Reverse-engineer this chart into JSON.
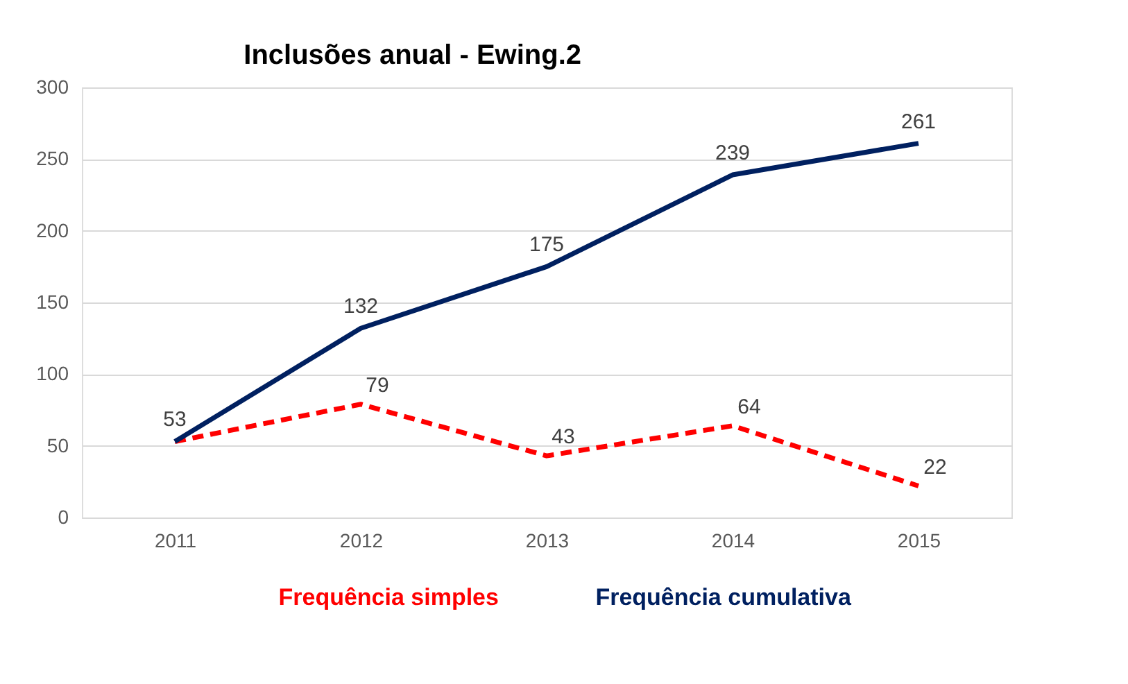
{
  "chart_data": {
    "type": "line",
    "title": "Inclusões anual - Ewing.2",
    "categories": [
      "2011",
      "2012",
      "2013",
      "2014",
      "2015"
    ],
    "series": [
      {
        "name": "Frequência simples",
        "color": "#ff0000",
        "line_style": "dashed",
        "values": [
          53,
          79,
          43,
          64,
          22
        ],
        "value_labels": [
          null,
          "79",
          "43",
          "64",
          "22"
        ]
      },
      {
        "name": "Frequência cumulativa",
        "color": "#002060",
        "line_style": "solid",
        "values": [
          53,
          132,
          175,
          239,
          261
        ],
        "value_labels": [
          "53",
          "132",
          "175",
          "239",
          "261"
        ]
      }
    ],
    "ylim": [
      0,
      300
    ],
    "yticks": [
      0,
      50,
      100,
      150,
      200,
      250,
      300
    ],
    "grid": "y",
    "legend": "bottom"
  }
}
